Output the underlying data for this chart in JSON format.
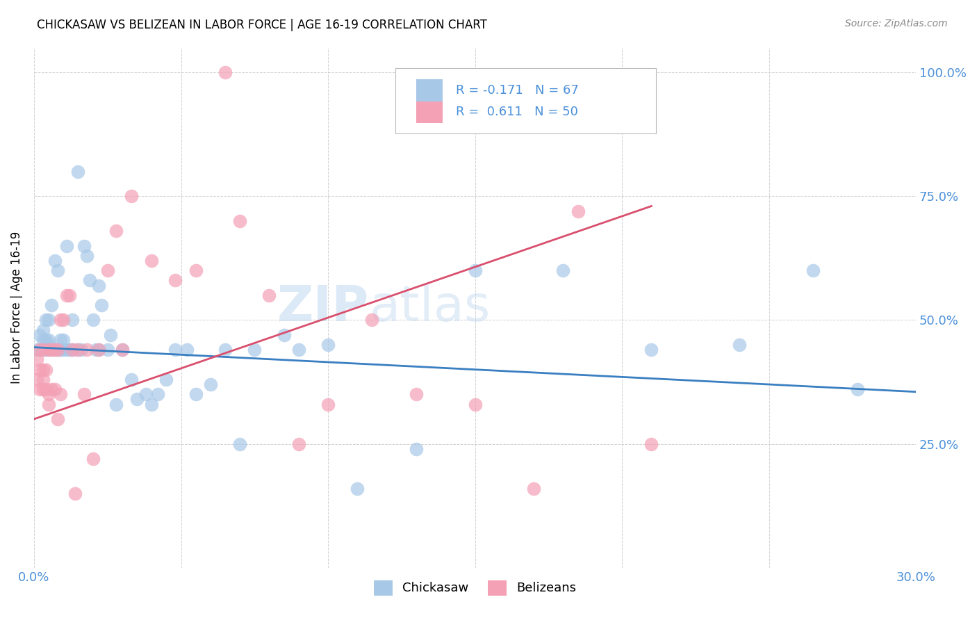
{
  "title": "CHICKASAW VS BELIZEAN IN LABOR FORCE | AGE 16-19 CORRELATION CHART",
  "source": "Source: ZipAtlas.com",
  "ylabel": "In Labor Force | Age 16-19",
  "xlim": [
    0.0,
    0.3
  ],
  "ylim": [
    0.0,
    1.05
  ],
  "yticks": [
    0.25,
    0.5,
    0.75,
    1.0
  ],
  "ytick_labels": [
    "25.0%",
    "50.0%",
    "75.0%",
    "100.0%"
  ],
  "xticks": [
    0.0,
    0.05,
    0.1,
    0.15,
    0.2,
    0.25,
    0.3
  ],
  "xtick_labels": [
    "0.0%",
    "",
    "",
    "",
    "",
    "",
    "30.0%"
  ],
  "chickasaw_R": -0.171,
  "chickasaw_N": 67,
  "belizean_R": 0.611,
  "belizean_N": 50,
  "chickasaw_color": "#a8c8e8",
  "belizean_color": "#f4a0b5",
  "chickasaw_line_color": "#3a7fc1",
  "belizean_line_color": "#d94f6e",
  "axis_color": "#4a90d9",
  "chickasaw_x": [
    0.001,
    0.002,
    0.002,
    0.003,
    0.003,
    0.003,
    0.004,
    0.004,
    0.004,
    0.005,
    0.005,
    0.005,
    0.005,
    0.006,
    0.006,
    0.007,
    0.007,
    0.008,
    0.008,
    0.009,
    0.009,
    0.01,
    0.01,
    0.011,
    0.011,
    0.012,
    0.013,
    0.013,
    0.015,
    0.015,
    0.016,
    0.017,
    0.018,
    0.019,
    0.02,
    0.021,
    0.022,
    0.022,
    0.023,
    0.025,
    0.026,
    0.028,
    0.03,
    0.033,
    0.035,
    0.038,
    0.04,
    0.042,
    0.045,
    0.048,
    0.052,
    0.055,
    0.06,
    0.065,
    0.07,
    0.075,
    0.085,
    0.09,
    0.1,
    0.11,
    0.13,
    0.15,
    0.18,
    0.21,
    0.24,
    0.265,
    0.28
  ],
  "chickasaw_y": [
    0.44,
    0.44,
    0.47,
    0.44,
    0.46,
    0.48,
    0.44,
    0.46,
    0.5,
    0.44,
    0.45,
    0.46,
    0.5,
    0.44,
    0.53,
    0.44,
    0.62,
    0.44,
    0.6,
    0.44,
    0.46,
    0.44,
    0.46,
    0.44,
    0.65,
    0.44,
    0.44,
    0.5,
    0.8,
    0.44,
    0.44,
    0.65,
    0.63,
    0.58,
    0.5,
    0.44,
    0.44,
    0.57,
    0.53,
    0.44,
    0.47,
    0.33,
    0.44,
    0.38,
    0.34,
    0.35,
    0.33,
    0.35,
    0.38,
    0.44,
    0.44,
    0.35,
    0.37,
    0.44,
    0.25,
    0.44,
    0.47,
    0.44,
    0.45,
    0.16,
    0.24,
    0.6,
    0.6,
    0.44,
    0.45,
    0.6,
    0.36
  ],
  "belizean_x": [
    0.001,
    0.001,
    0.002,
    0.002,
    0.002,
    0.003,
    0.003,
    0.003,
    0.003,
    0.004,
    0.004,
    0.005,
    0.005,
    0.005,
    0.006,
    0.006,
    0.007,
    0.007,
    0.008,
    0.008,
    0.009,
    0.009,
    0.01,
    0.011,
    0.012,
    0.013,
    0.014,
    0.015,
    0.017,
    0.018,
    0.02,
    0.022,
    0.025,
    0.028,
    0.03,
    0.033,
    0.04,
    0.048,
    0.055,
    0.065,
    0.07,
    0.08,
    0.09,
    0.1,
    0.115,
    0.13,
    0.15,
    0.17,
    0.185,
    0.21
  ],
  "belizean_y": [
    0.38,
    0.42,
    0.36,
    0.4,
    0.44,
    0.36,
    0.38,
    0.4,
    0.44,
    0.36,
    0.4,
    0.33,
    0.35,
    0.44,
    0.36,
    0.44,
    0.36,
    0.44,
    0.3,
    0.44,
    0.35,
    0.5,
    0.5,
    0.55,
    0.55,
    0.44,
    0.15,
    0.44,
    0.35,
    0.44,
    0.22,
    0.44,
    0.6,
    0.68,
    0.44,
    0.75,
    0.62,
    0.58,
    0.6,
    1.0,
    0.7,
    0.55,
    0.25,
    0.33,
    0.5,
    0.35,
    0.33,
    0.16,
    0.72,
    0.25
  ],
  "chickasaw_line_x": [
    0.0,
    0.3
  ],
  "chickasaw_line_y": [
    0.445,
    0.355
  ],
  "belizean_line_x": [
    0.0,
    0.21
  ],
  "belizean_line_y": [
    0.3,
    0.73
  ]
}
